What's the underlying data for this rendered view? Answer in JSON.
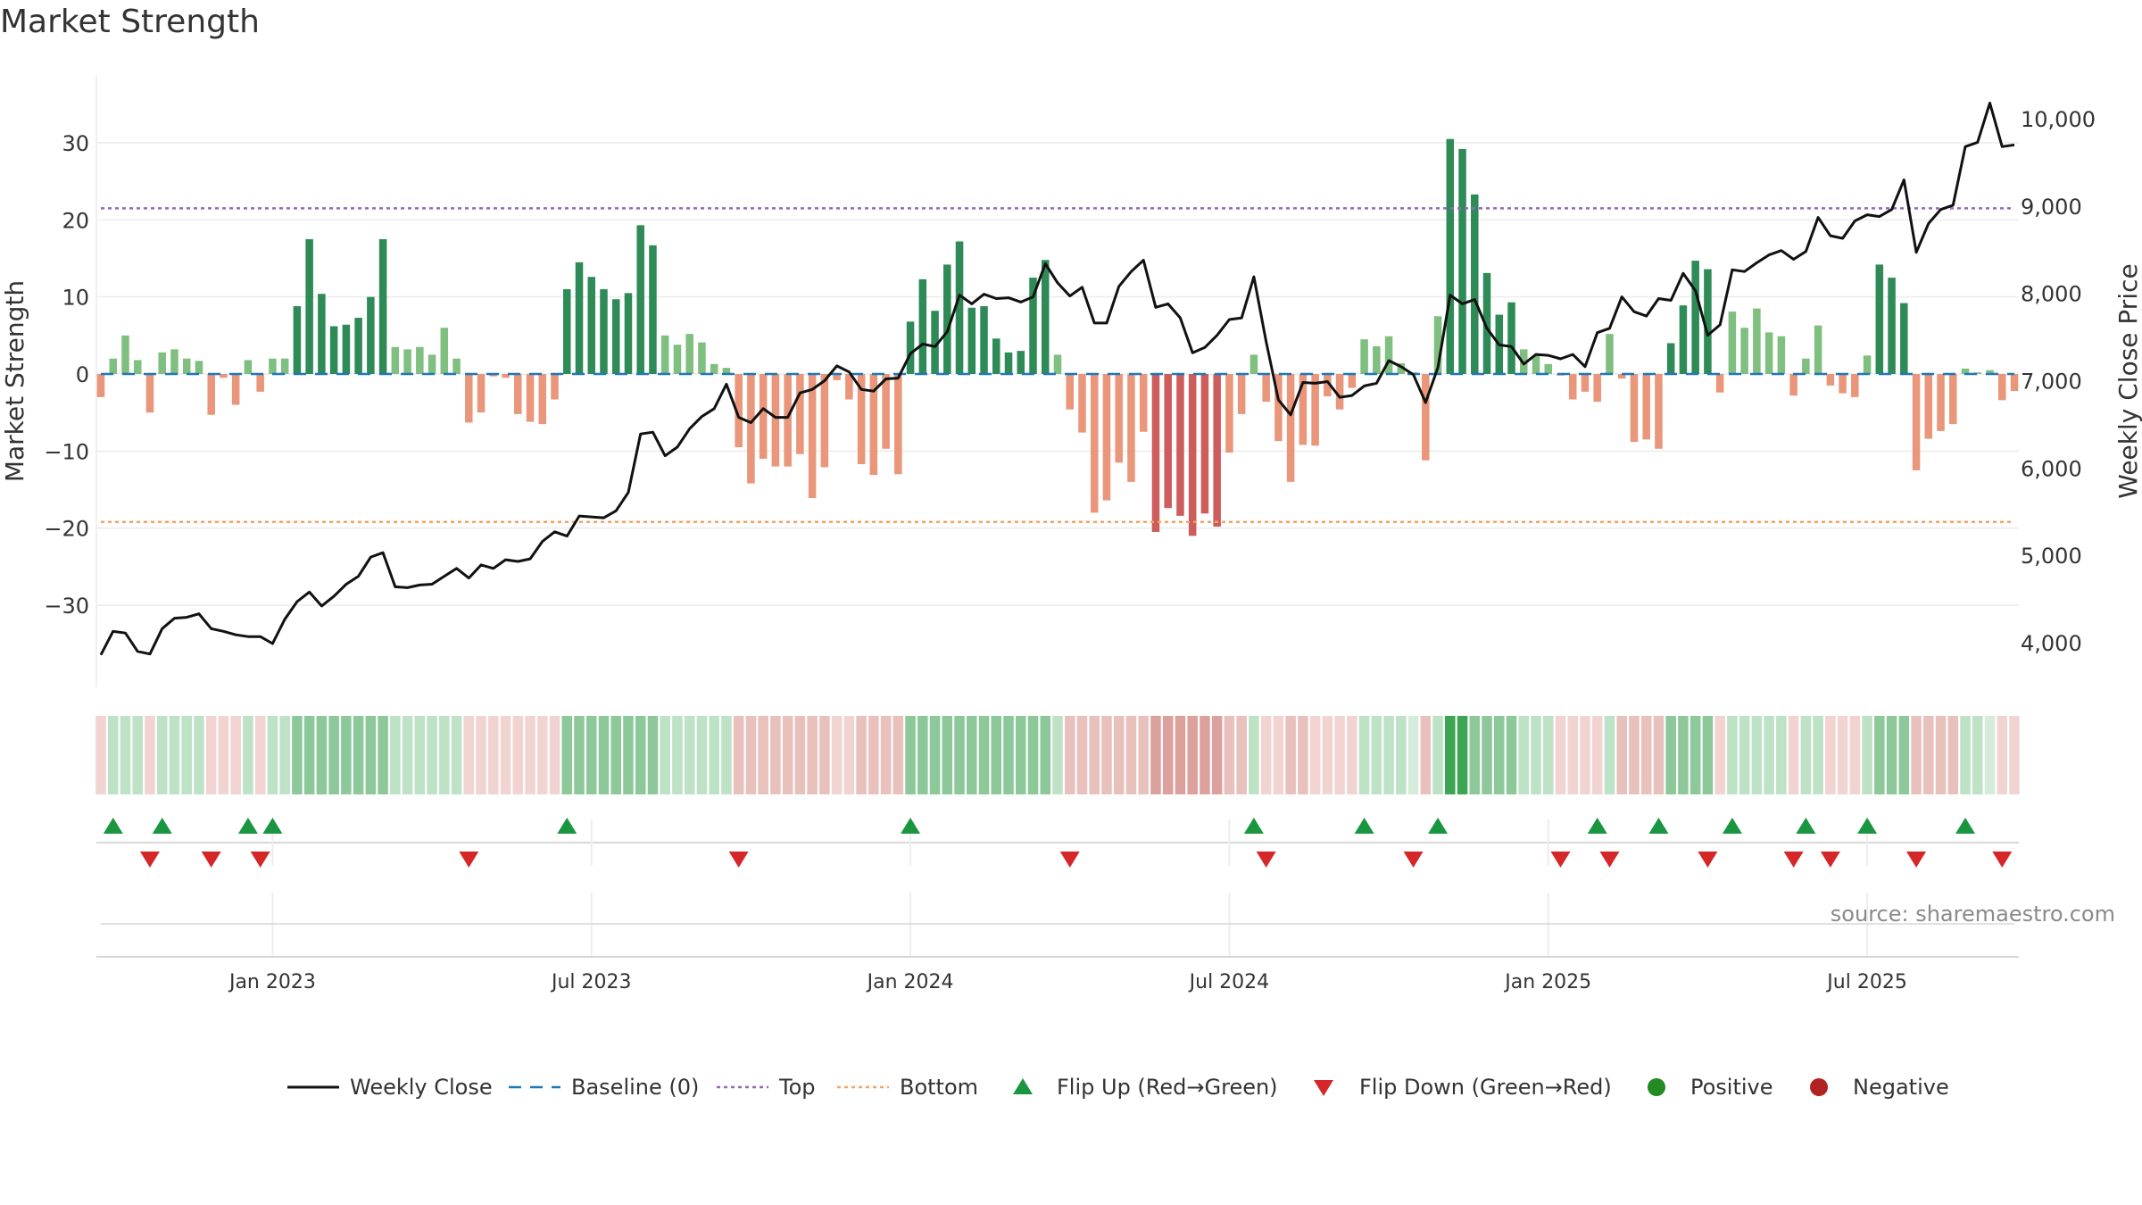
{
  "title": "Market Strength",
  "source": "source: sharemaestro.com",
  "colors": {
    "strong_green": "#2e8b57",
    "light_green": "#7fbf7f",
    "strong_red": "#cd5c5c",
    "light_red": "#e9967a",
    "close_line": "#111111",
    "baseline": "#1f77b4",
    "top": "#9467bd",
    "bottom": "#f4a460",
    "flip_up": "#1a9641",
    "flip_down": "#d62728",
    "positive": "#228b22",
    "negative": "#b22222"
  },
  "chart_data": {
    "type": "bar",
    "title": "Market Strength",
    "ylabel_left": "Market Strength",
    "ylabel_right": "Weekly Close Price",
    "ylim_left": [
      -30,
      30
    ],
    "ylim_right": [
      4000,
      10000
    ],
    "left_ticks": [
      30,
      20,
      10,
      0,
      -10,
      -20,
      -30
    ],
    "left_tick_labels": [
      "30",
      "20",
      "10",
      "0",
      "−10",
      "−20",
      "−30"
    ],
    "right_ticks": [
      10000,
      9000,
      8000,
      7000,
      6000,
      5000,
      4000
    ],
    "right_tick_labels": [
      "10,000",
      "9,000",
      "8,000",
      "7,000",
      "6,000",
      "5,000",
      "4,000"
    ],
    "x_tick_labels": [
      "Jan 2023",
      "Jul 2023",
      "Jan 2024",
      "Jul 2024",
      "Jan 2025",
      "Jul 2025"
    ],
    "x_tick_weeks": [
      14,
      40,
      66,
      92,
      118,
      144
    ],
    "top_level": 21.5,
    "bottom_level": -19.2,
    "strength": [
      -3,
      2,
      5,
      1.8,
      -5,
      2.8,
      3.2,
      2,
      1.7,
      -5.3,
      -0.5,
      -4,
      1.8,
      -2.3,
      2,
      2,
      8.8,
      17.5,
      10.4,
      6.2,
      6.4,
      7.3,
      10,
      17.5,
      3.5,
      3.2,
      3.5,
      2.5,
      6,
      2,
      -6.3,
      -5,
      -0.3,
      -0.5,
      -5.2,
      -6.2,
      -6.5,
      -3.3,
      11,
      14.5,
      12.6,
      11,
      9.7,
      10.5,
      19.3,
      16.7,
      5,
      3.8,
      5.2,
      4.1,
      1.3,
      0.8,
      -9.5,
      -14.2,
      -11,
      -12,
      -12,
      -10.4,
      -16.1,
      -12.1,
      -0.8,
      -3.3,
      -11.7,
      -13.1,
      -9.7,
      -13,
      6.8,
      12.3,
      8.2,
      14.2,
      17.2,
      8.6,
      8.8,
      4.6,
      2.8,
      3,
      12.5,
      14.8,
      2.5,
      -4.6,
      -7.6,
      -18,
      -16.4,
      -11.5,
      -14,
      -7.5,
      -20.5,
      -17.4,
      -18.4,
      -21,
      -18.1,
      -19.8,
      -10.2,
      -5.2,
      2.5,
      -3.6,
      -8.7,
      -14,
      -9.2,
      -9.3,
      -2.9,
      -4.6,
      -1.8,
      4.5,
      3.6,
      4.9,
      1.4,
      0.2,
      -11.2,
      7.5,
      30.5,
      29.2,
      23.3,
      13.1,
      7.7,
      9.3,
      3.2,
      2.4,
      1.3,
      -0.2,
      -3.3,
      -2.3,
      -3.6,
      5.2,
      -0.6,
      -8.8,
      -8.5,
      -9.7,
      4,
      8.9,
      14.7,
      13.6,
      -2.4,
      8.1,
      6,
      8.5,
      5.4,
      4.9,
      -2.8,
      2,
      6.3,
      -1.5,
      -2.5,
      -3,
      2.4,
      14.2,
      12.5,
      9.2,
      -12.5,
      -8.4,
      -7.4,
      -6.5,
      0.7,
      0.2,
      0.5,
      -3.4,
      -2.2
    ],
    "weekly_close": [
      3860,
      4130,
      4110,
      3900,
      3870,
      4160,
      4280,
      4290,
      4330,
      4160,
      4130,
      4090,
      4070,
      4070,
      3990,
      4270,
      4470,
      4580,
      4420,
      4530,
      4670,
      4760,
      4980,
      5030,
      4640,
      4630,
      4660,
      4670,
      4760,
      4850,
      4740,
      4890,
      4850,
      4950,
      4930,
      4960,
      5160,
      5270,
      5220,
      5450,
      5440,
      5430,
      5510,
      5720,
      6390,
      6410,
      6140,
      6240,
      6450,
      6590,
      6680,
      6960,
      6580,
      6520,
      6680,
      6580,
      6580,
      6860,
      6900,
      7000,
      7170,
      7100,
      6900,
      6880,
      7020,
      7030,
      7310,
      7420,
      7390,
      7560,
      7980,
      7880,
      7990,
      7940,
      7950,
      7900,
      7960,
      8340,
      8120,
      7970,
      8070,
      7660,
      7660,
      8080,
      8250,
      8380,
      7840,
      7880,
      7720,
      7320,
      7380,
      7520,
      7700,
      7720,
      8190,
      7450,
      6780,
      6610,
      6980,
      6970,
      6990,
      6810,
      6830,
      6940,
      6970,
      7230,
      7160,
      7070,
      6750,
      7150,
      7980,
      7880,
      7930,
      7600,
      7410,
      7390,
      7190,
      7300,
      7290,
      7250,
      7300,
      7160,
      7550,
      7600,
      7960,
      7790,
      7740,
      7940,
      7920,
      8230,
      8030,
      7520,
      7640,
      8270,
      8250,
      8350,
      8440,
      8490,
      8390,
      8480,
      8870,
      8660,
      8630,
      8830,
      8900,
      8880,
      8960,
      9300,
      8470,
      8800,
      8960,
      9010,
      9680,
      9730,
      10180,
      9680,
      9700
    ],
    "intensity": [
      1,
      2,
      2,
      2,
      1,
      2,
      2,
      2,
      2,
      1,
      1,
      1,
      2,
      1,
      2,
      2,
      3,
      3,
      3,
      3,
      3,
      3,
      3,
      3,
      2,
      2,
      2,
      2,
      2,
      2,
      1,
      1,
      1,
      1,
      1,
      1,
      1,
      1,
      3,
      3,
      3,
      3,
      3,
      3,
      3,
      3,
      2,
      2,
      2,
      2,
      2,
      2,
      2,
      2,
      2,
      2,
      2,
      2,
      2,
      2,
      1,
      1,
      2,
      2,
      2,
      2,
      3,
      3,
      3,
      3,
      3,
      3,
      3,
      3,
      3,
      3,
      3,
      3,
      2,
      2,
      2,
      2,
      2,
      2,
      2,
      2,
      3,
      3,
      3,
      3,
      3,
      3,
      2,
      2,
      2,
      1,
      1,
      2,
      2,
      1,
      1,
      1,
      1,
      2,
      2,
      2,
      2,
      1,
      2,
      2,
      4,
      4,
      3,
      3,
      3,
      3,
      2,
      2,
      2,
      1,
      1,
      1,
      1,
      2,
      2,
      2,
      2,
      2,
      3,
      3,
      3,
      3,
      1,
      2,
      2,
      2,
      2,
      2,
      1,
      2,
      2,
      1,
      1,
      1,
      2,
      3,
      3,
      3,
      2,
      2,
      2,
      2,
      2,
      2,
      1,
      1,
      1
    ],
    "flip_up_weeks": [
      1,
      5,
      12,
      14,
      38,
      66,
      94,
      103,
      109,
      122,
      127,
      133,
      139,
      144,
      152
    ],
    "flip_down_weeks": [
      4,
      9,
      13,
      30,
      52,
      79,
      95,
      107,
      119,
      123,
      131,
      138,
      141,
      148,
      155
    ],
    "legend": [
      "Weekly Close",
      "Baseline (0)",
      "Top",
      "Bottom",
      "Flip Up (Red→Green)",
      "Flip Down (Green→Red)",
      "Positive",
      "Negative"
    ],
    "legend_placement": "bottom-center",
    "grid": true
  }
}
